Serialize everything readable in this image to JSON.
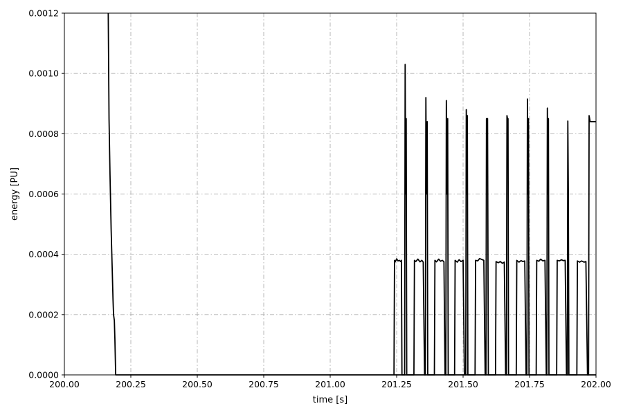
{
  "chart_data": {
    "type": "line",
    "title": "",
    "xlabel": "time [s]",
    "ylabel": "energy [PU]",
    "xlim": [
      200.0,
      202.0
    ],
    "ylim": [
      0.0,
      0.0012
    ],
    "x_ticks": [
      200.0,
      200.25,
      200.5,
      200.75,
      201.0,
      201.25,
      201.5,
      201.75,
      202.0
    ],
    "x_tick_labels": [
      "200.00",
      "200.25",
      "200.50",
      "200.75",
      "201.00",
      "201.25",
      "201.50",
      "201.75",
      "202.00"
    ],
    "y_ticks": [
      0.0,
      0.0002,
      0.0004,
      0.0006,
      0.0008,
      0.001,
      0.0012
    ],
    "y_tick_labels": [
      "0.0000",
      "0.0002",
      "0.0004",
      "0.0006",
      "0.0008",
      "0.0010",
      "0.0012"
    ],
    "grid": true,
    "line_color": "#000000",
    "series": [
      {
        "x": [
          200.165,
          200.168,
          200.172,
          200.176,
          200.18,
          200.183,
          200.185,
          200.188,
          200.19,
          200.193,
          200.196,
          202.0
        ],
        "y": [
          0.0012,
          0.00085,
          0.00065,
          0.00048,
          0.00035,
          0.00025,
          0.0002,
          0.00018,
          0.00012,
          0.0,
          0.0,
          0.0
        ]
      },
      {
        "x": [
          201.24,
          201.242,
          201.245,
          201.25,
          201.255,
          201.26,
          201.265,
          201.268,
          201.27,
          201.275,
          201.28,
          201.282,
          201.284,
          201.286,
          201.288,
          201.29,
          201.315,
          201.317,
          201.322,
          201.33,
          201.338,
          201.345,
          201.35,
          201.355,
          201.358,
          201.36,
          201.362,
          201.365,
          201.367,
          201.392,
          201.394,
          201.4,
          201.408,
          201.415,
          201.422,
          201.428,
          201.432,
          201.435,
          201.437,
          201.44,
          201.442,
          201.444,
          201.468,
          201.47,
          201.478,
          201.485,
          201.492,
          201.5,
          201.505,
          201.51,
          201.512,
          201.514,
          201.516,
          201.518,
          201.545,
          201.547,
          201.555,
          201.562,
          201.57,
          201.578,
          201.583,
          201.586,
          201.588,
          201.59,
          201.592,
          201.595,
          201.622,
          201.624,
          201.632,
          201.64,
          201.648,
          201.655,
          201.66,
          201.663,
          201.665,
          201.667,
          201.669,
          201.671,
          201.7,
          201.702,
          201.71,
          201.718,
          201.725,
          201.732,
          201.737,
          201.74,
          201.742,
          201.744,
          201.746,
          201.748,
          201.775,
          201.777,
          201.785,
          201.792,
          201.8,
          201.808,
          201.813,
          201.815,
          201.817,
          201.819,
          201.821,
          201.823,
          201.852,
          201.854,
          201.862,
          201.87,
          201.877,
          201.884,
          201.889,
          201.892,
          201.894,
          201.896,
          201.898,
          201.9,
          201.928,
          201.93,
          201.938,
          201.946,
          201.955,
          201.962,
          201.968,
          201.972,
          201.974,
          201.976,
          201.978,
          201.98,
          202.0
        ],
        "y": [
          0.0,
          0.00038,
          0.000375,
          0.000385,
          0.000378,
          0.00038,
          0.000376,
          0.00038,
          0.0,
          0.0,
          0.0,
          0.00103,
          0.0006,
          0.00085,
          0.0,
          0.0,
          0.0,
          0.00038,
          0.000376,
          0.000384,
          0.000375,
          0.00038,
          0.000374,
          0.0,
          0.0,
          0.00092,
          0.0006,
          0.00084,
          0.0,
          0.0,
          0.00038,
          0.000375,
          0.000384,
          0.000377,
          0.00038,
          0.000375,
          0.0,
          0.0,
          0.00091,
          0.0006,
          0.00085,
          0.0,
          0.0,
          0.00038,
          0.000374,
          0.000382,
          0.000376,
          0.00038,
          0.0,
          0.0,
          0.00088,
          0.0006,
          0.00086,
          0.0,
          0.0,
          0.00038,
          0.000378,
          0.000386,
          0.000383,
          0.00038,
          0.0,
          0.0,
          0.00085,
          0.00084,
          0.00085,
          0.0,
          0.0,
          0.000376,
          0.000372,
          0.000376,
          0.00037,
          0.000374,
          0.0,
          0.0,
          0.00086,
          0.00085,
          0.00085,
          0.0,
          0.0,
          0.00038,
          0.000374,
          0.000379,
          0.000376,
          0.000378,
          0.0,
          0.0,
          0.000915,
          0.0006,
          0.00085,
          0.0,
          0.0,
          0.00038,
          0.000377,
          0.000384,
          0.000378,
          0.00038,
          0.0,
          0.0,
          0.000885,
          0.0006,
          0.00085,
          0.0,
          0.0,
          0.00038,
          0.000378,
          0.000382,
          0.000379,
          0.00038,
          0.0,
          0.0,
          0.000842,
          0.0006,
          0.0,
          0.0,
          0.0,
          0.000378,
          0.000374,
          0.000378,
          0.000374,
          0.000376,
          0.0,
          0.0,
          0.00086,
          0.00085,
          0.00084,
          0.00084,
          0.00084
        ]
      }
    ]
  }
}
